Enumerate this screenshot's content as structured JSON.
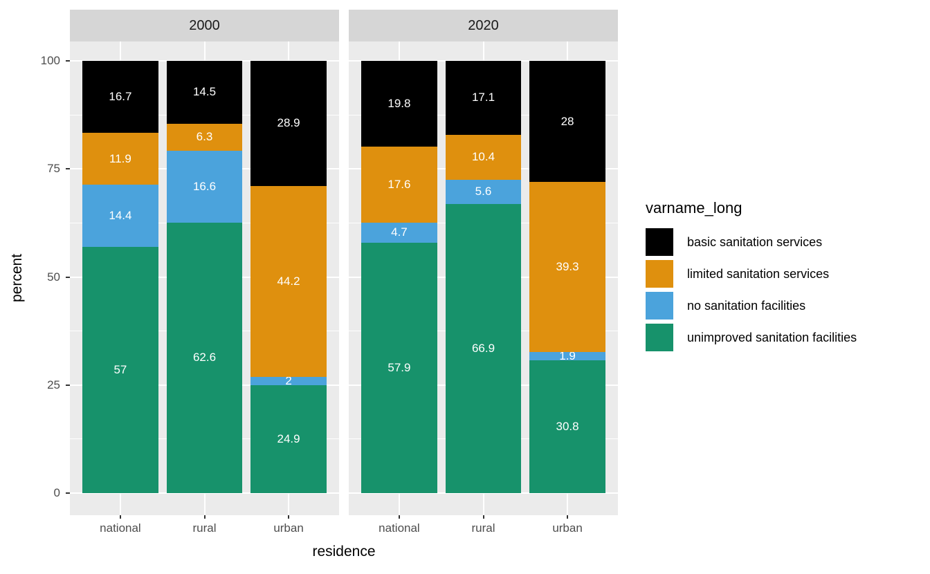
{
  "chart_data": {
    "type": "bar",
    "stacked": true,
    "title": "",
    "xlabel": "residence",
    "ylabel": "percent",
    "ylim": [
      0,
      100
    ],
    "yticks": [
      0,
      25,
      50,
      75,
      100
    ],
    "yticks_minor": [
      12.5,
      37.5,
      62.5,
      87.5
    ],
    "grid": true,
    "legend_title": "varname_long",
    "legend_position": "right",
    "categories": [
      "national",
      "rural",
      "urban"
    ],
    "series_meta": [
      {
        "name": "basic sanitation services",
        "color": "#000000"
      },
      {
        "name": "limited sanitation services",
        "color": "#DF900E"
      },
      {
        "name": "no sanitation facilities",
        "color": "#4BA3DC"
      },
      {
        "name": "unimproved sanitation facilities",
        "color": "#17926B"
      }
    ],
    "stack_order_bottom_to_top": [
      "unimproved sanitation facilities",
      "no sanitation facilities",
      "limited sanitation services",
      "basic sanitation services"
    ],
    "facets": [
      {
        "label": "2000",
        "series": [
          {
            "name": "basic sanitation services",
            "values": [
              16.7,
              14.5,
              28.9
            ]
          },
          {
            "name": "limited sanitation services",
            "values": [
              11.9,
              6.3,
              44.2
            ]
          },
          {
            "name": "no sanitation facilities",
            "values": [
              14.4,
              16.6,
              2
            ]
          },
          {
            "name": "unimproved sanitation facilities",
            "values": [
              57,
              62.6,
              24.9
            ]
          }
        ]
      },
      {
        "label": "2020",
        "series": [
          {
            "name": "basic sanitation services",
            "values": [
              19.8,
              17.1,
              28
            ]
          },
          {
            "name": "limited sanitation services",
            "values": [
              17.6,
              10.4,
              39.3
            ]
          },
          {
            "name": "no sanitation facilities",
            "values": [
              4.7,
              5.6,
              1.9
            ]
          },
          {
            "name": "unimproved sanitation facilities",
            "values": [
              57.9,
              66.9,
              30.8
            ]
          }
        ]
      }
    ],
    "colors": {
      "panel_bg": "#EBEBEB",
      "strip_bg": "#D6D6D6",
      "grid": "#FFFFFF",
      "bar_label_text": "#FFFFFF",
      "axis_text": "#4D4D4D",
      "strip_text": "#1A1A1A",
      "tick_mark": "#333333",
      "axis_title_text": "#000000"
    }
  }
}
